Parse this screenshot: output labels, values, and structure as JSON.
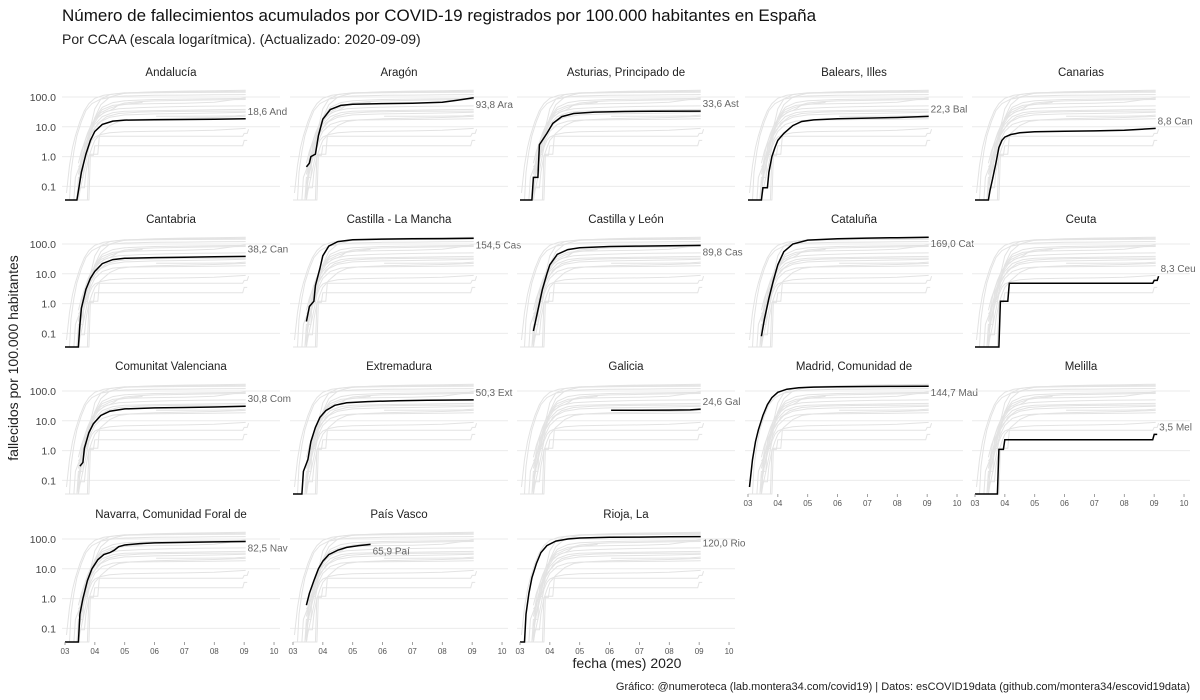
{
  "title": "Número de fallecimientos acumulados por COVID-19 registrados por 100.000 habitantes en España",
  "subtitle": "Por CCAA (escala logarítmica). (Actualizado: 2020-09-09)",
  "caption": "Gráfico: @numeroteca (lab.montera34.com/covid19) | Datos: esCOVID19data (github.com/montera34/escovid19data)",
  "chart_data": {
    "type": "line",
    "scale": "log",
    "xlabel": "fecha (mes) 2020",
    "ylabel": "fallecidos por 100.000 habitantes",
    "ylim": [
      0.035,
      200
    ],
    "y_ticks": [
      0.1,
      1,
      10,
      100
    ],
    "y_tick_labels": [
      "0.1",
      "1.0",
      "10.0",
      "100.0"
    ],
    "x_ticks": [
      "03",
      "04",
      "05",
      "06",
      "07",
      "08",
      "09",
      "10"
    ],
    "xlim_month": [
      2.9,
      10.2
    ],
    "grid": true,
    "colors": {
      "highlight": "#000000",
      "background_lines": "#e3e3e3",
      "grid": "#ebebeb"
    },
    "series": [
      {
        "name": "Andalucía",
        "final_value": 18.6,
        "end_label": "18,6 And",
        "points": [
          [
            3.0,
            0.035
          ],
          [
            3.4,
            0.035
          ],
          [
            3.45,
            0.07
          ],
          [
            3.55,
            0.3
          ],
          [
            3.7,
            1.2
          ],
          [
            3.85,
            3.5
          ],
          [
            4.0,
            7
          ],
          [
            4.25,
            12
          ],
          [
            4.6,
            15.5
          ],
          [
            5.0,
            16.8
          ],
          [
            6.0,
            17.3
          ],
          [
            7.0,
            17.5
          ],
          [
            8.0,
            17.8
          ],
          [
            9.05,
            18.6
          ]
        ]
      },
      {
        "name": "Aragón",
        "final_value": 93.8,
        "end_label": "93,8 Ara",
        "points": [
          [
            3.45,
            0.45
          ],
          [
            3.55,
            0.6
          ],
          [
            3.6,
            1.0
          ],
          [
            3.75,
            1.2
          ],
          [
            3.85,
            5
          ],
          [
            4.0,
            18
          ],
          [
            4.25,
            38
          ],
          [
            4.6,
            52
          ],
          [
            5.0,
            57
          ],
          [
            6.0,
            60
          ],
          [
            7.0,
            62
          ],
          [
            8.0,
            67
          ],
          [
            8.5,
            78
          ],
          [
            9.05,
            93.8
          ]
        ]
      },
      {
        "name": "Asturias, Principado de",
        "final_value": 33.6,
        "end_label": "33,6 Ast",
        "points": [
          [
            3.0,
            0.035
          ],
          [
            3.4,
            0.035
          ],
          [
            3.45,
            0.2
          ],
          [
            3.6,
            0.2
          ],
          [
            3.65,
            2.5
          ],
          [
            3.9,
            6
          ],
          [
            4.1,
            13
          ],
          [
            4.4,
            22
          ],
          [
            4.8,
            28
          ],
          [
            5.5,
            31
          ],
          [
            6.5,
            32.5
          ],
          [
            7.5,
            33
          ],
          [
            9.05,
            33.6
          ]
        ]
      },
      {
        "name": "Balears, Illes",
        "final_value": 22.3,
        "end_label": "22,3 Bal",
        "points": [
          [
            3.0,
            0.035
          ],
          [
            3.45,
            0.035
          ],
          [
            3.5,
            0.09
          ],
          [
            3.65,
            0.09
          ],
          [
            3.7,
            0.3
          ],
          [
            3.8,
            1.0
          ],
          [
            3.9,
            2.0
          ],
          [
            4.0,
            3.5
          ],
          [
            4.2,
            6
          ],
          [
            4.5,
            11
          ],
          [
            4.8,
            15
          ],
          [
            5.2,
            17
          ],
          [
            6.0,
            18.5
          ],
          [
            7.0,
            19.5
          ],
          [
            8.0,
            20.5
          ],
          [
            9.05,
            22.3
          ]
        ]
      },
      {
        "name": "Canarias",
        "final_value": 8.8,
        "end_label": "8,8 Can",
        "points": [
          [
            3.0,
            0.035
          ],
          [
            3.45,
            0.035
          ],
          [
            3.5,
            0.07
          ],
          [
            3.6,
            0.2
          ],
          [
            3.7,
            0.6
          ],
          [
            3.8,
            2
          ],
          [
            3.9,
            3.5
          ],
          [
            4.0,
            4.5
          ],
          [
            4.2,
            5.5
          ],
          [
            4.5,
            6.3
          ],
          [
            5.0,
            6.8
          ],
          [
            6.0,
            7.1
          ],
          [
            7.0,
            7.3
          ],
          [
            8.0,
            7.6
          ],
          [
            9.05,
            8.8
          ]
        ]
      },
      {
        "name": "Cantabria",
        "final_value": 38.2,
        "end_label": "38,2 Can",
        "points": [
          [
            3.0,
            0.035
          ],
          [
            3.45,
            0.035
          ],
          [
            3.5,
            0.2
          ],
          [
            3.55,
            0.7
          ],
          [
            3.7,
            3
          ],
          [
            3.85,
            7
          ],
          [
            4.0,
            12
          ],
          [
            4.25,
            22
          ],
          [
            4.6,
            30
          ],
          [
            5.0,
            33
          ],
          [
            6.0,
            35
          ],
          [
            7.0,
            36
          ],
          [
            8.0,
            37
          ],
          [
            9.05,
            38.2
          ]
        ]
      },
      {
        "name": "Castilla - La Mancha",
        "final_value": 154.5,
        "end_label": "154,5 Cas",
        "points": [
          [
            3.45,
            0.25
          ],
          [
            3.55,
            0.8
          ],
          [
            3.7,
            1.2
          ],
          [
            3.75,
            4
          ],
          [
            3.9,
            15
          ],
          [
            4.0,
            40
          ],
          [
            4.2,
            85
          ],
          [
            4.5,
            120
          ],
          [
            5.0,
            138
          ],
          [
            6.0,
            146
          ],
          [
            7.0,
            149
          ],
          [
            8.0,
            151
          ],
          [
            9.05,
            154.5
          ]
        ]
      },
      {
        "name": "Castilla y León",
        "final_value": 89.8,
        "end_label": "89,8 Cas",
        "points": [
          [
            3.45,
            0.12
          ],
          [
            3.6,
            0.6
          ],
          [
            3.75,
            3
          ],
          [
            3.9,
            10
          ],
          [
            4.0,
            20
          ],
          [
            4.25,
            45
          ],
          [
            4.6,
            65
          ],
          [
            5.0,
            75
          ],
          [
            6.0,
            82
          ],
          [
            7.0,
            85
          ],
          [
            8.0,
            87
          ],
          [
            9.05,
            89.8
          ]
        ]
      },
      {
        "name": "Cataluña",
        "final_value": 169.0,
        "end_label": "169,0 Cat",
        "points": [
          [
            3.45,
            0.08
          ],
          [
            3.55,
            0.3
          ],
          [
            3.7,
            1.5
          ],
          [
            3.85,
            6
          ],
          [
            4.0,
            20
          ],
          [
            4.2,
            55
          ],
          [
            4.5,
            100
          ],
          [
            5.0,
            135
          ],
          [
            6.0,
            150
          ],
          [
            7.0,
            157
          ],
          [
            8.0,
            162
          ],
          [
            9.05,
            169
          ]
        ]
      },
      {
        "name": "Ceuta",
        "final_value": 8.3,
        "end_label": "8,3 Ceu",
        "points": [
          [
            3.0,
            0.035
          ],
          [
            3.8,
            0.035
          ],
          [
            3.85,
            1.2
          ],
          [
            4.1,
            1.2
          ],
          [
            4.15,
            4.8
          ],
          [
            8.95,
            4.8
          ],
          [
            9.0,
            6
          ],
          [
            9.1,
            6
          ],
          [
            9.15,
            8.3
          ]
        ]
      },
      {
        "name": "Comunitat Valenciana",
        "final_value": 30.8,
        "end_label": "30,8 Com",
        "points": [
          [
            3.5,
            0.3
          ],
          [
            3.6,
            0.4
          ],
          [
            3.65,
            1.2
          ],
          [
            3.8,
            4
          ],
          [
            3.95,
            8
          ],
          [
            4.2,
            15
          ],
          [
            4.5,
            21
          ],
          [
            5.0,
            25
          ],
          [
            6.0,
            27
          ],
          [
            7.0,
            28
          ],
          [
            8.0,
            29
          ],
          [
            9.05,
            30.8
          ]
        ]
      },
      {
        "name": "Extremadura",
        "final_value": 50.3,
        "end_label": "50,3 Ext",
        "points": [
          [
            3.0,
            0.035
          ],
          [
            3.3,
            0.035
          ],
          [
            3.35,
            0.2
          ],
          [
            3.5,
            0.5
          ],
          [
            3.6,
            2
          ],
          [
            3.75,
            6
          ],
          [
            3.9,
            13
          ],
          [
            4.1,
            22
          ],
          [
            4.4,
            33
          ],
          [
            4.8,
            40
          ],
          [
            5.5,
            44
          ],
          [
            6.5,
            47
          ],
          [
            7.5,
            48.5
          ],
          [
            9.05,
            50.3
          ]
        ]
      },
      {
        "name": "Galicia",
        "final_value": 24.6,
        "end_label": "24,6 Gal",
        "points": [
          [
            6.05,
            22.5
          ],
          [
            7.0,
            22.6
          ],
          [
            8.0,
            22.8
          ],
          [
            8.7,
            23.2
          ],
          [
            9.05,
            24.6
          ]
        ]
      },
      {
        "name": "Madrid, Comunidad de",
        "final_value": 144.7,
        "end_label": "144,7 Mad",
        "points": [
          [
            3.05,
            0.06
          ],
          [
            3.15,
            0.5
          ],
          [
            3.25,
            2
          ],
          [
            3.35,
            5
          ],
          [
            3.5,
            15
          ],
          [
            3.65,
            35
          ],
          [
            3.8,
            60
          ],
          [
            4.0,
            90
          ],
          [
            4.3,
            115
          ],
          [
            4.7,
            128
          ],
          [
            5.2,
            135
          ],
          [
            6.0,
            139
          ],
          [
            7.0,
            141
          ],
          [
            8.0,
            142.5
          ],
          [
            9.05,
            144.7
          ]
        ]
      },
      {
        "name": "Melilla",
        "final_value": 3.5,
        "end_label": "3,5 Mel",
        "points": [
          [
            3.0,
            0.035
          ],
          [
            3.75,
            0.035
          ],
          [
            3.8,
            1.1
          ],
          [
            3.95,
            1.1
          ],
          [
            4.0,
            2.3
          ],
          [
            8.95,
            2.3
          ],
          [
            9.0,
            3.5
          ],
          [
            9.1,
            3.5
          ]
        ]
      },
      {
        "name": "Navarra, Comunidad Foral de",
        "final_value": 82.5,
        "end_label": "82,5 Nav",
        "points": [
          [
            3.0,
            0.035
          ],
          [
            3.45,
            0.035
          ],
          [
            3.5,
            0.3
          ],
          [
            3.6,
            1
          ],
          [
            3.75,
            4
          ],
          [
            3.9,
            10
          ],
          [
            4.1,
            20
          ],
          [
            4.3,
            30
          ],
          [
            4.5,
            35
          ],
          [
            4.65,
            42
          ],
          [
            4.8,
            55
          ],
          [
            5.0,
            63
          ],
          [
            5.5,
            70
          ],
          [
            6.0,
            74
          ],
          [
            7.0,
            77
          ],
          [
            8.0,
            80
          ],
          [
            9.05,
            82.5
          ]
        ]
      },
      {
        "name": "País Vasco",
        "final_value": 65.9,
        "end_label": "65,9 Paí",
        "points": [
          [
            3.45,
            0.6
          ],
          [
            3.55,
            1.5
          ],
          [
            3.7,
            4
          ],
          [
            3.85,
            10
          ],
          [
            4.0,
            18
          ],
          [
            4.2,
            30
          ],
          [
            4.5,
            42
          ],
          [
            4.8,
            52
          ],
          [
            5.2,
            60
          ],
          [
            5.6,
            65.9
          ]
        ]
      },
      {
        "name": "Rioja, La",
        "final_value": 120.0,
        "end_label": "120,0 Rio",
        "points": [
          [
            3.0,
            0.035
          ],
          [
            3.15,
            0.035
          ],
          [
            3.2,
            0.3
          ],
          [
            3.3,
            1.5
          ],
          [
            3.4,
            5
          ],
          [
            3.55,
            15
          ],
          [
            3.7,
            35
          ],
          [
            3.9,
            60
          ],
          [
            4.2,
            85
          ],
          [
            4.6,
            100
          ],
          [
            5.0,
            108
          ],
          [
            6.0,
            114
          ],
          [
            7.0,
            116
          ],
          [
            8.0,
            118
          ],
          [
            9.05,
            120
          ]
        ]
      }
    ]
  }
}
